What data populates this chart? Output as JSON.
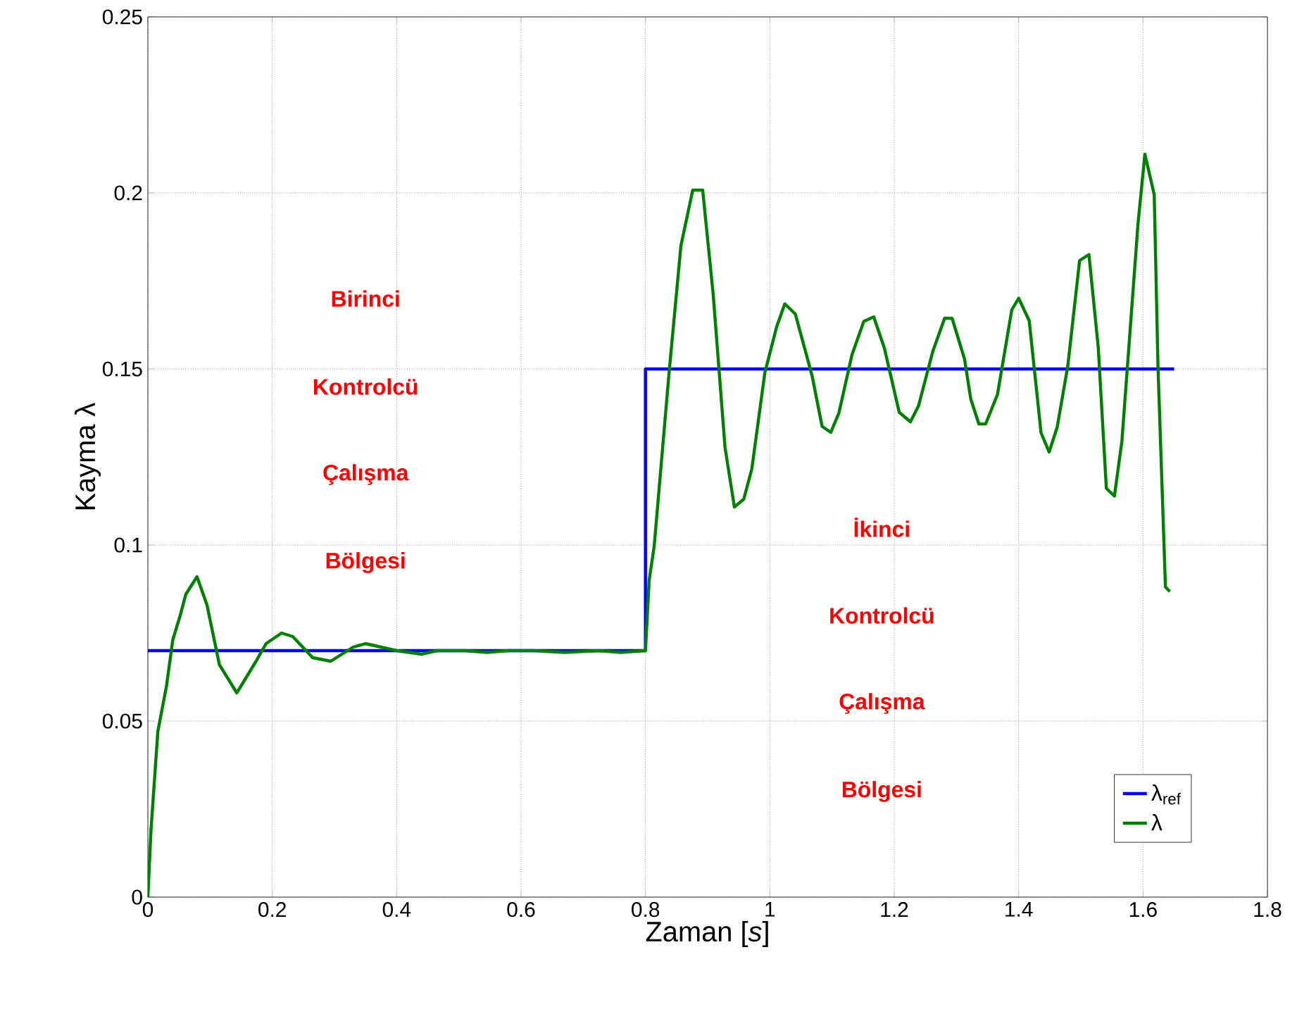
{
  "chart_data": {
    "type": "line",
    "xlabel": "Zaman [*s*]",
    "ylabel": "Kayma λ",
    "xlim": [
      0,
      1.8
    ],
    "ylim": [
      0,
      0.25
    ],
    "xticks": [
      0,
      0.2,
      0.4,
      0.6,
      0.8,
      1,
      1.2,
      1.4,
      1.6,
      1.8
    ],
    "yticks": [
      0,
      0.05,
      0.1,
      0.15,
      0.2,
      0.25
    ],
    "grid": true,
    "legend": "bottom right",
    "series": [
      {
        "name": "λ$_{ref}$",
        "color": "#0000ff",
        "x": [
          0,
          0.8,
          0.8,
          1.65
        ],
        "values": [
          0.07,
          0.07,
          0.15,
          0.15
        ]
      },
      {
        "name": "λ",
        "color": "#008000",
        "x": [
          0,
          0.005,
          0.016,
          0.03,
          0.04,
          0.052,
          0.061,
          0.079,
          0.095,
          0.115,
          0.143,
          0.174,
          0.19,
          0.215,
          0.233,
          0.265,
          0.294,
          0.33,
          0.35,
          0.4,
          0.44,
          0.465,
          0.51,
          0.545,
          0.58,
          0.62,
          0.67,
          0.725,
          0.76,
          0.8,
          0.806,
          0.814,
          0.838,
          0.857,
          0.876,
          0.892,
          0.909,
          0.928,
          0.943,
          0.958,
          0.971,
          0.992,
          1.011,
          1.024,
          1.041,
          1.068,
          1.084,
          1.098,
          1.111,
          1.132,
          1.151,
          1.167,
          1.184,
          1.208,
          1.226,
          1.239,
          1.262,
          1.281,
          1.293,
          1.313,
          1.323,
          1.336,
          1.347,
          1.366,
          1.389,
          1.4,
          1.417,
          1.436,
          1.449,
          1.462,
          1.479,
          1.498,
          1.513,
          1.528,
          1.541,
          1.554,
          1.566,
          1.592,
          1.603,
          1.618,
          1.624,
          1.636,
          1.643
        ],
        "values": [
          0,
          0.019,
          0.047,
          0.06,
          0.073,
          0.08,
          0.086,
          0.091,
          0.083,
          0.066,
          0.058,
          0.067,
          0.072,
          0.075,
          0.074,
          0.068,
          0.067,
          0.071,
          0.072,
          0.07,
          0.069,
          0.07,
          0.07,
          0.0695,
          0.07,
          0.07,
          0.0695,
          0.07,
          0.0695,
          0.07,
          0.09,
          0.0996,
          0.149,
          0.185,
          0.2008,
          0.2008,
          0.171,
          0.1276,
          0.1108,
          0.113,
          0.1216,
          0.149,
          0.162,
          0.1685,
          0.1656,
          0.148,
          0.1337,
          0.132,
          0.1375,
          0.154,
          0.1635,
          0.1648,
          0.156,
          0.1377,
          0.135,
          0.1395,
          0.155,
          0.1644,
          0.1644,
          0.1528,
          0.1415,
          0.1344,
          0.1344,
          0.1428,
          0.1668,
          0.1701,
          0.1637,
          0.1319,
          0.1264,
          0.1335,
          0.1508,
          0.1808,
          0.1825,
          0.1561,
          0.1161,
          0.1139,
          0.1295,
          0.1915,
          0.211,
          0.1995,
          0.1508,
          0.0881,
          0.0868
        ]
      }
    ],
    "annotations": [
      "Birinci",
      "Kontrolcü",
      "Çalışma",
      "Bölgesi",
      "İkinci",
      "Kontrolcü",
      "Çalışma",
      "Bölgesi"
    ]
  }
}
